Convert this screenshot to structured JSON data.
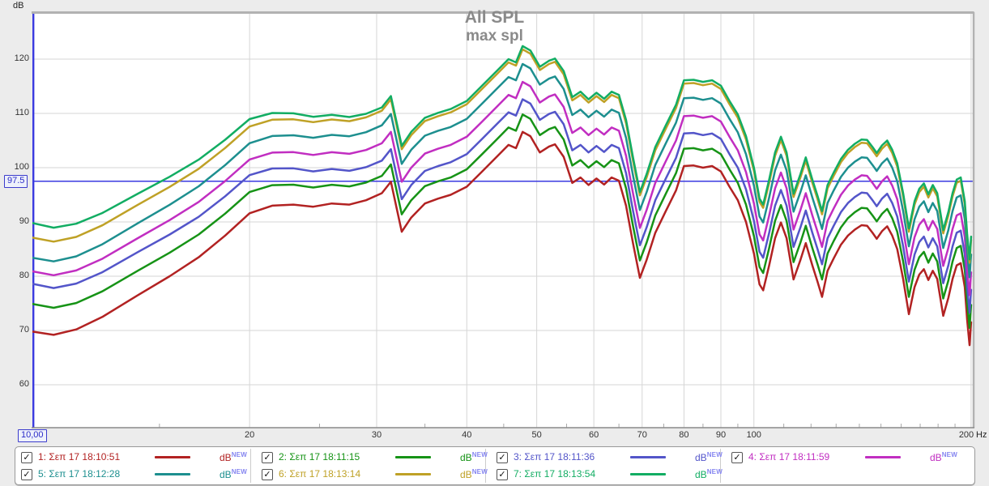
{
  "app": {
    "kind": "SPL measurement graph"
  },
  "chart_data": {
    "type": "line",
    "title": "All SPL",
    "subtitle": "max spl",
    "legend_position": "bottom",
    "grid": true,
    "x_axis": {
      "unit": "Hz",
      "scale": "log",
      "min": 10,
      "max": 200,
      "labeled_ticks": [
        20,
        30,
        40,
        50,
        60,
        70,
        80,
        90,
        100,
        200
      ],
      "minor_ticks": [
        15,
        25,
        35,
        45,
        55,
        65,
        75,
        85,
        95,
        110,
        120,
        130,
        140,
        150,
        160,
        170,
        180,
        190
      ]
    },
    "y_axis": {
      "unit": "dB",
      "min": 52,
      "max": 128.7,
      "labeled_ticks": [
        60,
        70,
        80,
        90,
        100,
        110,
        120
      ]
    },
    "cursor": {
      "freq_label": "10,00",
      "freq_hz": 10,
      "level_label": "97.5",
      "level_dB": 97.5
    },
    "frequencies": [
      10,
      10.7,
      11.5,
      12.5,
      14,
      15.5,
      17,
      18.5,
      20,
      21.5,
      23,
      24.5,
      26,
      27.5,
      29,
      30.5,
      31.4,
      32.5,
      33.5,
      35,
      36.5,
      38,
      40,
      42,
      44,
      45.7,
      46.8,
      47.8,
      49,
      50.5,
      52,
      53,
      54.5,
      56,
      57.5,
      59,
      60.5,
      62,
      63.5,
      65,
      66.5,
      68,
      69.5,
      71,
      73,
      75.5,
      78,
      80,
      82.5,
      85,
      87.5,
      90,
      92.5,
      95,
      97.5,
      100,
      101.8,
      103,
      105,
      107,
      109,
      111,
      113.5,
      116,
      118,
      120.5,
      122.5,
      124.3,
      126.5,
      129,
      132,
      135,
      138,
      141,
      143.5,
      146,
      148,
      150.5,
      153,
      155.5,
      158,
      161,
      164,
      167,
      169.5,
      172,
      174.5,
      177,
      179.5,
      183,
      186,
      188.5,
      191,
      193.5,
      196,
      197.5,
      199,
      200
    ],
    "base_series_dB": [
      69.8,
      69.2,
      70.2,
      72.5,
      76.5,
      80,
      83.5,
      87.5,
      91.6,
      93,
      93.2,
      92.8,
      93.4,
      93.2,
      94,
      95.3,
      97.4,
      88.2,
      90.8,
      93.4,
      94.3,
      95,
      96.5,
      99.3,
      102,
      104.2,
      103.6,
      106.6,
      105.8,
      102.8,
      103.9,
      104.3,
      102,
      97.2,
      98.2,
      96.8,
      98,
      96.9,
      98.2,
      97.6,
      93,
      86,
      79.7,
      83,
      88,
      92,
      95.8,
      100.3,
      100.4,
      100,
      100.3,
      99.3,
      96.5,
      94,
      90,
      84.2,
      78.5,
      77.4,
      82,
      87,
      89.9,
      87,
      79.4,
      83,
      86.1,
      82,
      79,
      76.2,
      81,
      83.3,
      85.8,
      87.5,
      88.6,
      89.4,
      89.3,
      88,
      86.9,
      88.3,
      89.2,
      87.5,
      85,
      79.5,
      73,
      78,
      80.3,
      81.3,
      79.3,
      81,
      79.5,
      72.7,
      76,
      79.5,
      82,
      82.4,
      78,
      72,
      67.3,
      71.5
    ],
    "series_note": "values = base_series_dB + offset_dB, plus low_extra_dB blended in below 30 Hz (full weight at 10 Hz)",
    "series": [
      {
        "id": 1,
        "label": "1: Σεπ 17 18:10:51",
        "color": "#b22222",
        "offset_dB": 0,
        "low_extra_dB": 0,
        "checked": true,
        "unit": "dB",
        "badge": "NEW"
      },
      {
        "id": 2,
        "label": "2: Σεπ 17 18:11:15",
        "color": "#169316",
        "offset_dB": 3.2,
        "low_extra_dB": 1.9,
        "checked": true,
        "unit": "dB",
        "badge": "NEW"
      },
      {
        "id": 3,
        "label": "3: Σεπ 17 18:11:36",
        "color": "#5355c9",
        "offset_dB": 6.0,
        "low_extra_dB": 2.8,
        "checked": true,
        "unit": "dB",
        "badge": "NEW"
      },
      {
        "id": 4,
        "label": "4: Σεπ 17 18:11:59",
        "color": "#c12ec1",
        "offset_dB": 9.2,
        "low_extra_dB": 1.9,
        "checked": true,
        "unit": "dB",
        "badge": "NEW"
      },
      {
        "id": 5,
        "label": "5: Σεπ 17 18:12:28",
        "color": "#1d8f8f",
        "offset_dB": 12.5,
        "low_extra_dB": 1.1,
        "checked": true,
        "unit": "dB",
        "badge": "NEW"
      },
      {
        "id": 6,
        "label": "6: Σεπ 17 18:13:14",
        "color": "#bfa126",
        "offset_dB": 15.2,
        "low_extra_dB": 2.1,
        "checked": true,
        "unit": "dB",
        "badge": "NEW"
      },
      {
        "id": 7,
        "label": "7: Σεπ 17 18:13:54",
        "color": "#12ad63",
        "offset_dB": 15.8,
        "low_extra_dB": 4.2,
        "checked": true,
        "unit": "dB",
        "badge": "NEW"
      }
    ],
    "legend_rows": [
      [
        1,
        2,
        3,
        4
      ],
      [
        5,
        6,
        7
      ]
    ],
    "colors": {
      "title_text": "#8a8a8a",
      "gridline": "#d6d6d6",
      "plot_border": "#b2b2b2",
      "cursor_line": "#3a3ae0",
      "badge_text": "#8585f0",
      "axis_text": "#333333",
      "page_background": "#ececec",
      "plot_background": "#ffffff"
    },
    "checkmark_glyph": "✓"
  }
}
